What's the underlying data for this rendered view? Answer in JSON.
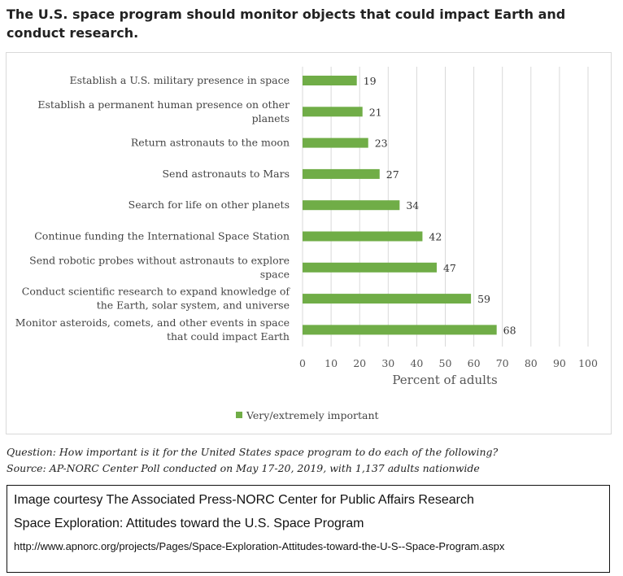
{
  "chart_data": {
    "type": "bar",
    "orientation": "horizontal",
    "title": "The U.S. space program should monitor objects that could impact Earth and conduct research.",
    "categories": [
      [
        "Establish a U.S. military presence in space"
      ],
      [
        "Establish a permanent human presence on other",
        "planets"
      ],
      [
        "Return astronauts to the moon"
      ],
      [
        "Send astronauts to Mars"
      ],
      [
        "Search for life on other planets"
      ],
      [
        "Continue funding the International Space Station"
      ],
      [
        "Send robotic probes without astronauts to explore",
        "space"
      ],
      [
        "Conduct scientific research to expand knowledge of",
        "the Earth, solar system, and universe"
      ],
      [
        "Monitor asteroids, comets, and other events in space",
        "that could impact Earth"
      ]
    ],
    "series": [
      {
        "name": "Very/extremely important",
        "values": [
          19,
          21,
          23,
          27,
          34,
          42,
          47,
          59,
          68
        ]
      }
    ],
    "xlabel": "Percent of adults",
    "xlim": [
      0,
      100
    ],
    "xticks": [
      0,
      10,
      20,
      30,
      40,
      50,
      60,
      70,
      80,
      90,
      100
    ],
    "grid": true,
    "legend_position": "bottom",
    "colors": {
      "bar": "#70ad47",
      "grid": "#d9d9d9",
      "axis": "#d9d9d9"
    }
  },
  "notes": {
    "question": "Question: How important is it for the United States space program to do each of the following?",
    "source": "Source: AP-NORC Center Poll conducted on May 17-20, 2019, with 1,137 adults nationwide"
  },
  "credit": {
    "line1": "Image courtesy The Associated Press-NORC Center for Public Affairs Research",
    "line2": "Space Exploration: Attitudes toward the U.S. Space Program",
    "line3": "http://www.apnorc.org/projects/Pages/Space-Exploration-Attitudes-toward-the-U-S--Space-Program.aspx"
  }
}
